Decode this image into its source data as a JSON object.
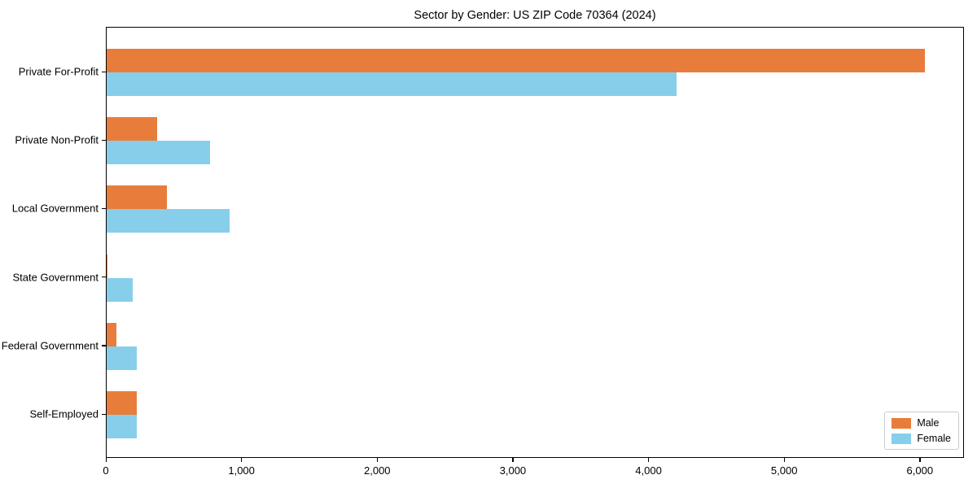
{
  "title": "Sector by Gender: US ZIP Code 70364 (2024)",
  "chart_data": {
    "type": "bar",
    "orientation": "horizontal",
    "title": "Sector by Gender: US ZIP Code 70364 (2024)",
    "xlabel": "",
    "ylabel": "",
    "categories": [
      "Private For-Profit",
      "Private Non-Profit",
      "Local Government",
      "State Government",
      "Federal Government",
      "Self-Employed"
    ],
    "series": [
      {
        "name": "Male",
        "color": "#e87d3b",
        "values": [
          6030,
          370,
          445,
          8,
          70,
          225
        ]
      },
      {
        "name": "Female",
        "color": "#87ceeb",
        "values": [
          4200,
          760,
          905,
          190,
          220,
          225
        ]
      }
    ],
    "xlim": [
      0,
      6325
    ],
    "xticks": [
      0,
      1000,
      2000,
      3000,
      4000,
      5000,
      6000
    ],
    "xtick_labels": [
      "0",
      "1,000",
      "2,000",
      "3,000",
      "4,000",
      "5,000",
      "6,000"
    ],
    "grid": false,
    "legend_position": "lower right",
    "legend_labels": [
      "Male",
      "Female"
    ]
  }
}
